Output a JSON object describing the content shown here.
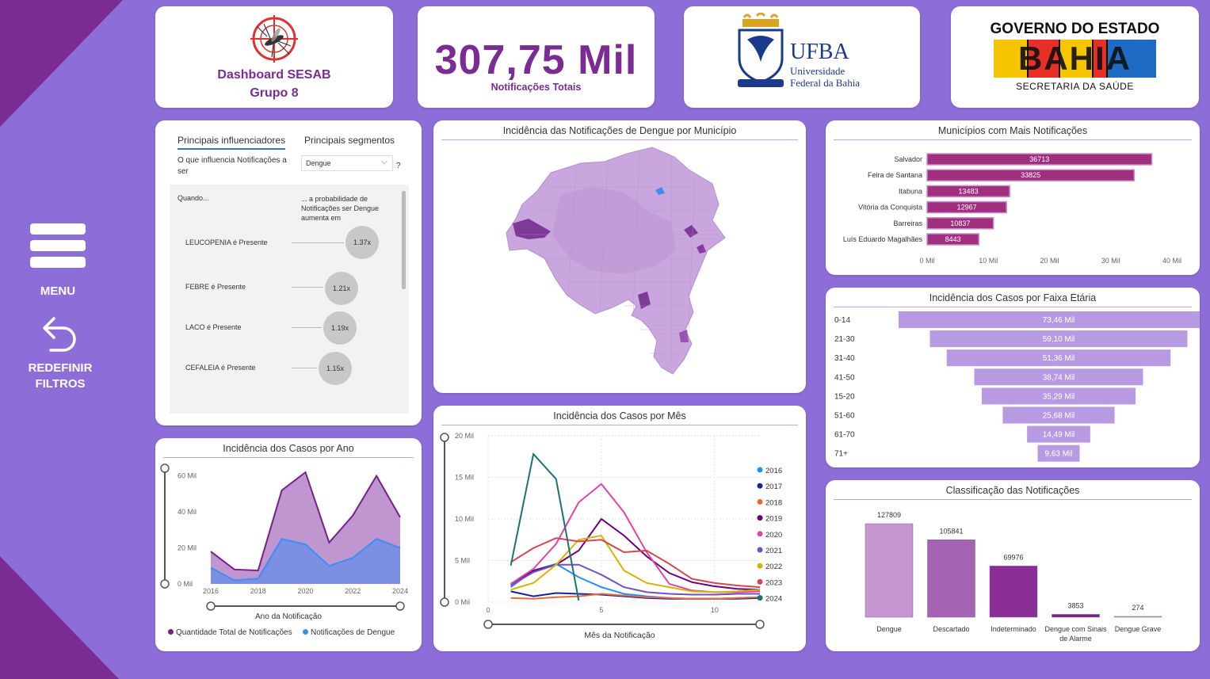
{
  "sidebar": {
    "menu_label": "MENU",
    "reset_label_1": "REDEFINIR",
    "reset_label_2": "FILTROS"
  },
  "header": {
    "dashboard_title_1": "Dashboard SESAB",
    "dashboard_title_2": "Grupo 8",
    "kpi_value": "307,75 Mil",
    "kpi_label": "Notificações Totais",
    "ufba_logo": {
      "name": "UFBA",
      "line1": "Universidade",
      "line2": "Federal da Bahia"
    },
    "bahia_logo": {
      "line1": "GOVERNO DO ESTADO",
      "word": "BAHIA",
      "line2": "SECRETARIA DA SAÚDE"
    }
  },
  "influencers": {
    "tab_active": "Principais influenciadores",
    "tab_other": "Principais segmentos",
    "question": "O que influencia Notificações a ser",
    "dropdown_value": "Dengue",
    "help": "?",
    "when_label": "Quando...",
    "prob_label": "... a probabilidade de Notificações ser Dengue aumenta em",
    "rows": [
      {
        "label": "LEUCOPENIA é Presente",
        "value": "1.37x"
      },
      {
        "label": "FEBRE é Presente",
        "value": "1.21x"
      },
      {
        "label": "LACO é Presente",
        "value": "1.19x"
      },
      {
        "label": "CEFALEIA é Presente",
        "value": "1.15x"
      }
    ]
  },
  "map_card": {
    "title": "Incidência das Notificações de Dengue por Município"
  },
  "municipios": {
    "title": "Municípios com Mais Notificações",
    "bar_color": "#a0307e"
  },
  "faixa": {
    "title": "Incidência dos Casos por Faixa Etária",
    "bar_color": "#b89ae3"
  },
  "classificacao": {
    "title": "Classificação das Notificações"
  },
  "ano": {
    "title": "Incidência dos Casos por Ano",
    "xlabel": "Ano da Notificação",
    "legend": [
      "Quantidade Total de Notificações",
      "Notificações de Dengue"
    ]
  },
  "mes": {
    "title": "Incidência dos Casos por Mês",
    "xlabel": "Mês da Notificação"
  },
  "chart_data": [
    {
      "type": "bar",
      "orientation": "horizontal",
      "title": "Municípios com Mais Notificações",
      "categories": [
        "Salvador",
        "Feira de Santana",
        "Itabuna",
        "Vitória da Conquista",
        "Barreiras",
        "Luís Eduardo Magalhães"
      ],
      "values": [
        36713,
        33825,
        13483,
        12967,
        10837,
        8443
      ],
      "xticks": [
        "0 Mil",
        "10 Mil",
        "20 Mil",
        "30 Mil",
        "40 Mil"
      ],
      "xlim": [
        0,
        40000
      ]
    },
    {
      "type": "bar",
      "orientation": "funnel",
      "title": "Incidência dos Casos por Faixa Etária",
      "categories": [
        "0-14",
        "21-30",
        "31-40",
        "41-50",
        "15-20",
        "51-60",
        "61-70",
        "71+"
      ],
      "values": [
        73.46,
        59.1,
        51.36,
        38.74,
        35.29,
        25.68,
        14.49,
        9.63
      ],
      "labels": [
        "73,46 Mil",
        "59,10 Mil",
        "51,36 Mil",
        "38,74 Mil",
        "35,29 Mil",
        "25,68 Mil",
        "14,49 Mil",
        "9,63 Mil"
      ]
    },
    {
      "type": "bar",
      "title": "Classificação das Notificações",
      "categories": [
        "Dengue",
        "Descartado",
        "Indeterminado",
        "Dengue com Sinais de Alarme",
        "Dengue Grave"
      ],
      "values": [
        127809,
        105841,
        69976,
        3853,
        274
      ],
      "colors": [
        "#c596cf",
        "#a564b3",
        "#8a2e96",
        "#7a1f8a",
        "#b0b0b0"
      ]
    },
    {
      "type": "area",
      "title": "Incidência dos Casos por Ano",
      "x": [
        2016,
        2017,
        2018,
        2019,
        2020,
        2021,
        2022,
        2023,
        2024
      ],
      "xticks": [
        "2016",
        "2018",
        "2020",
        "2022",
        "2024"
      ],
      "yticks": [
        "0 Mil",
        "20 Mil",
        "40 Mil",
        "60 Mil"
      ],
      "ylim": [
        0,
        66
      ],
      "xlabel": "Ano da Notificação",
      "series": [
        {
          "name": "Quantidade Total de Notificações",
          "color": "#7a1f8a",
          "values": [
            18,
            8,
            7.5,
            52,
            62,
            23,
            38,
            60,
            37
          ]
        },
        {
          "name": "Notificações de Dengue",
          "color": "#3f8ef0",
          "values": [
            9,
            2,
            3,
            25,
            22,
            10,
            14.5,
            25,
            20
          ]
        }
      ]
    },
    {
      "type": "line",
      "title": "Incidência dos Casos por Mês",
      "xlabel": "Mês da Notificação",
      "xticks": [
        "0",
        "5",
        "10"
      ],
      "yticks": [
        "0 Mil",
        "5 Mil",
        "10 Mil",
        "15 Mil",
        "20 Mil"
      ],
      "xlim": [
        0,
        12
      ],
      "ylim": [
        0,
        20
      ],
      "series": [
        {
          "name": "2016",
          "color": "#1e90ff",
          "x": [
            1,
            2,
            3,
            4,
            5,
            6,
            7,
            8,
            9,
            10,
            11,
            12
          ],
          "values": [
            1.8,
            3.8,
            4.6,
            3.0,
            1.8,
            1.0,
            0.7,
            0.5,
            0.4,
            0.4,
            0.5,
            0.6
          ]
        },
        {
          "name": "2017",
          "color": "#12239e",
          "x": [
            1,
            2,
            3,
            4,
            5,
            6,
            7,
            8,
            9,
            10,
            11,
            12
          ],
          "values": [
            1.3,
            0.7,
            1.1,
            1.0,
            0.9,
            0.7,
            0.5,
            0.4,
            0.4,
            0.4,
            0.4,
            0.5
          ]
        },
        {
          "name": "2018",
          "color": "#e66c37",
          "x": [
            1,
            2,
            3,
            4,
            5,
            6,
            7,
            8,
            9,
            10,
            11,
            12
          ],
          "values": [
            0.5,
            0.4,
            0.6,
            0.7,
            1.0,
            0.8,
            0.6,
            0.5,
            0.4,
            0.4,
            0.5,
            0.6
          ]
        },
        {
          "name": "2019",
          "color": "#6b007b",
          "x": [
            1,
            2,
            3,
            4,
            5,
            6,
            7,
            8,
            9,
            10,
            11,
            12
          ],
          "values": [
            2.2,
            3.8,
            4.5,
            6.2,
            10.0,
            8.0,
            5.5,
            3.5,
            2.4,
            1.9,
            1.6,
            1.5
          ]
        },
        {
          "name": "2020",
          "color": "#e044a7",
          "x": [
            1,
            2,
            3,
            4,
            5,
            6,
            7,
            8,
            9,
            10,
            11,
            12
          ],
          "values": [
            2.2,
            4.0,
            7.0,
            12.0,
            14.2,
            10.8,
            6.0,
            2.2,
            1.4,
            1.2,
            1.2,
            1.3
          ]
        },
        {
          "name": "2021",
          "color": "#744ec2",
          "x": [
            1,
            2,
            3,
            4,
            5,
            6,
            7,
            8,
            9,
            10,
            11,
            12
          ],
          "values": [
            2.0,
            3.6,
            4.5,
            4.5,
            3.3,
            1.8,
            1.2,
            1.0,
            0.9,
            0.9,
            1.0,
            1.0
          ]
        },
        {
          "name": "2022",
          "color": "#d9b300",
          "x": [
            1,
            2,
            3,
            4,
            5,
            6,
            7,
            8,
            9,
            10,
            11,
            12
          ],
          "values": [
            1.5,
            2.3,
            4.5,
            7.5,
            8.0,
            3.8,
            2.3,
            1.8,
            1.3,
            1.2,
            1.3,
            1.5
          ]
        },
        {
          "name": "2023",
          "color": "#d64550",
          "x": [
            1,
            2,
            3,
            4,
            5,
            6,
            7,
            8,
            9,
            10,
            11,
            12
          ],
          "values": [
            4.8,
            6.5,
            7.7,
            7.3,
            7.5,
            6.0,
            6.2,
            4.6,
            2.8,
            2.3,
            2.0,
            1.8
          ]
        },
        {
          "name": "2024",
          "color": "#197278",
          "x": [
            1,
            2,
            3,
            4
          ],
          "values": [
            4.4,
            17.8,
            14.8,
            0.2
          ]
        }
      ]
    }
  ]
}
